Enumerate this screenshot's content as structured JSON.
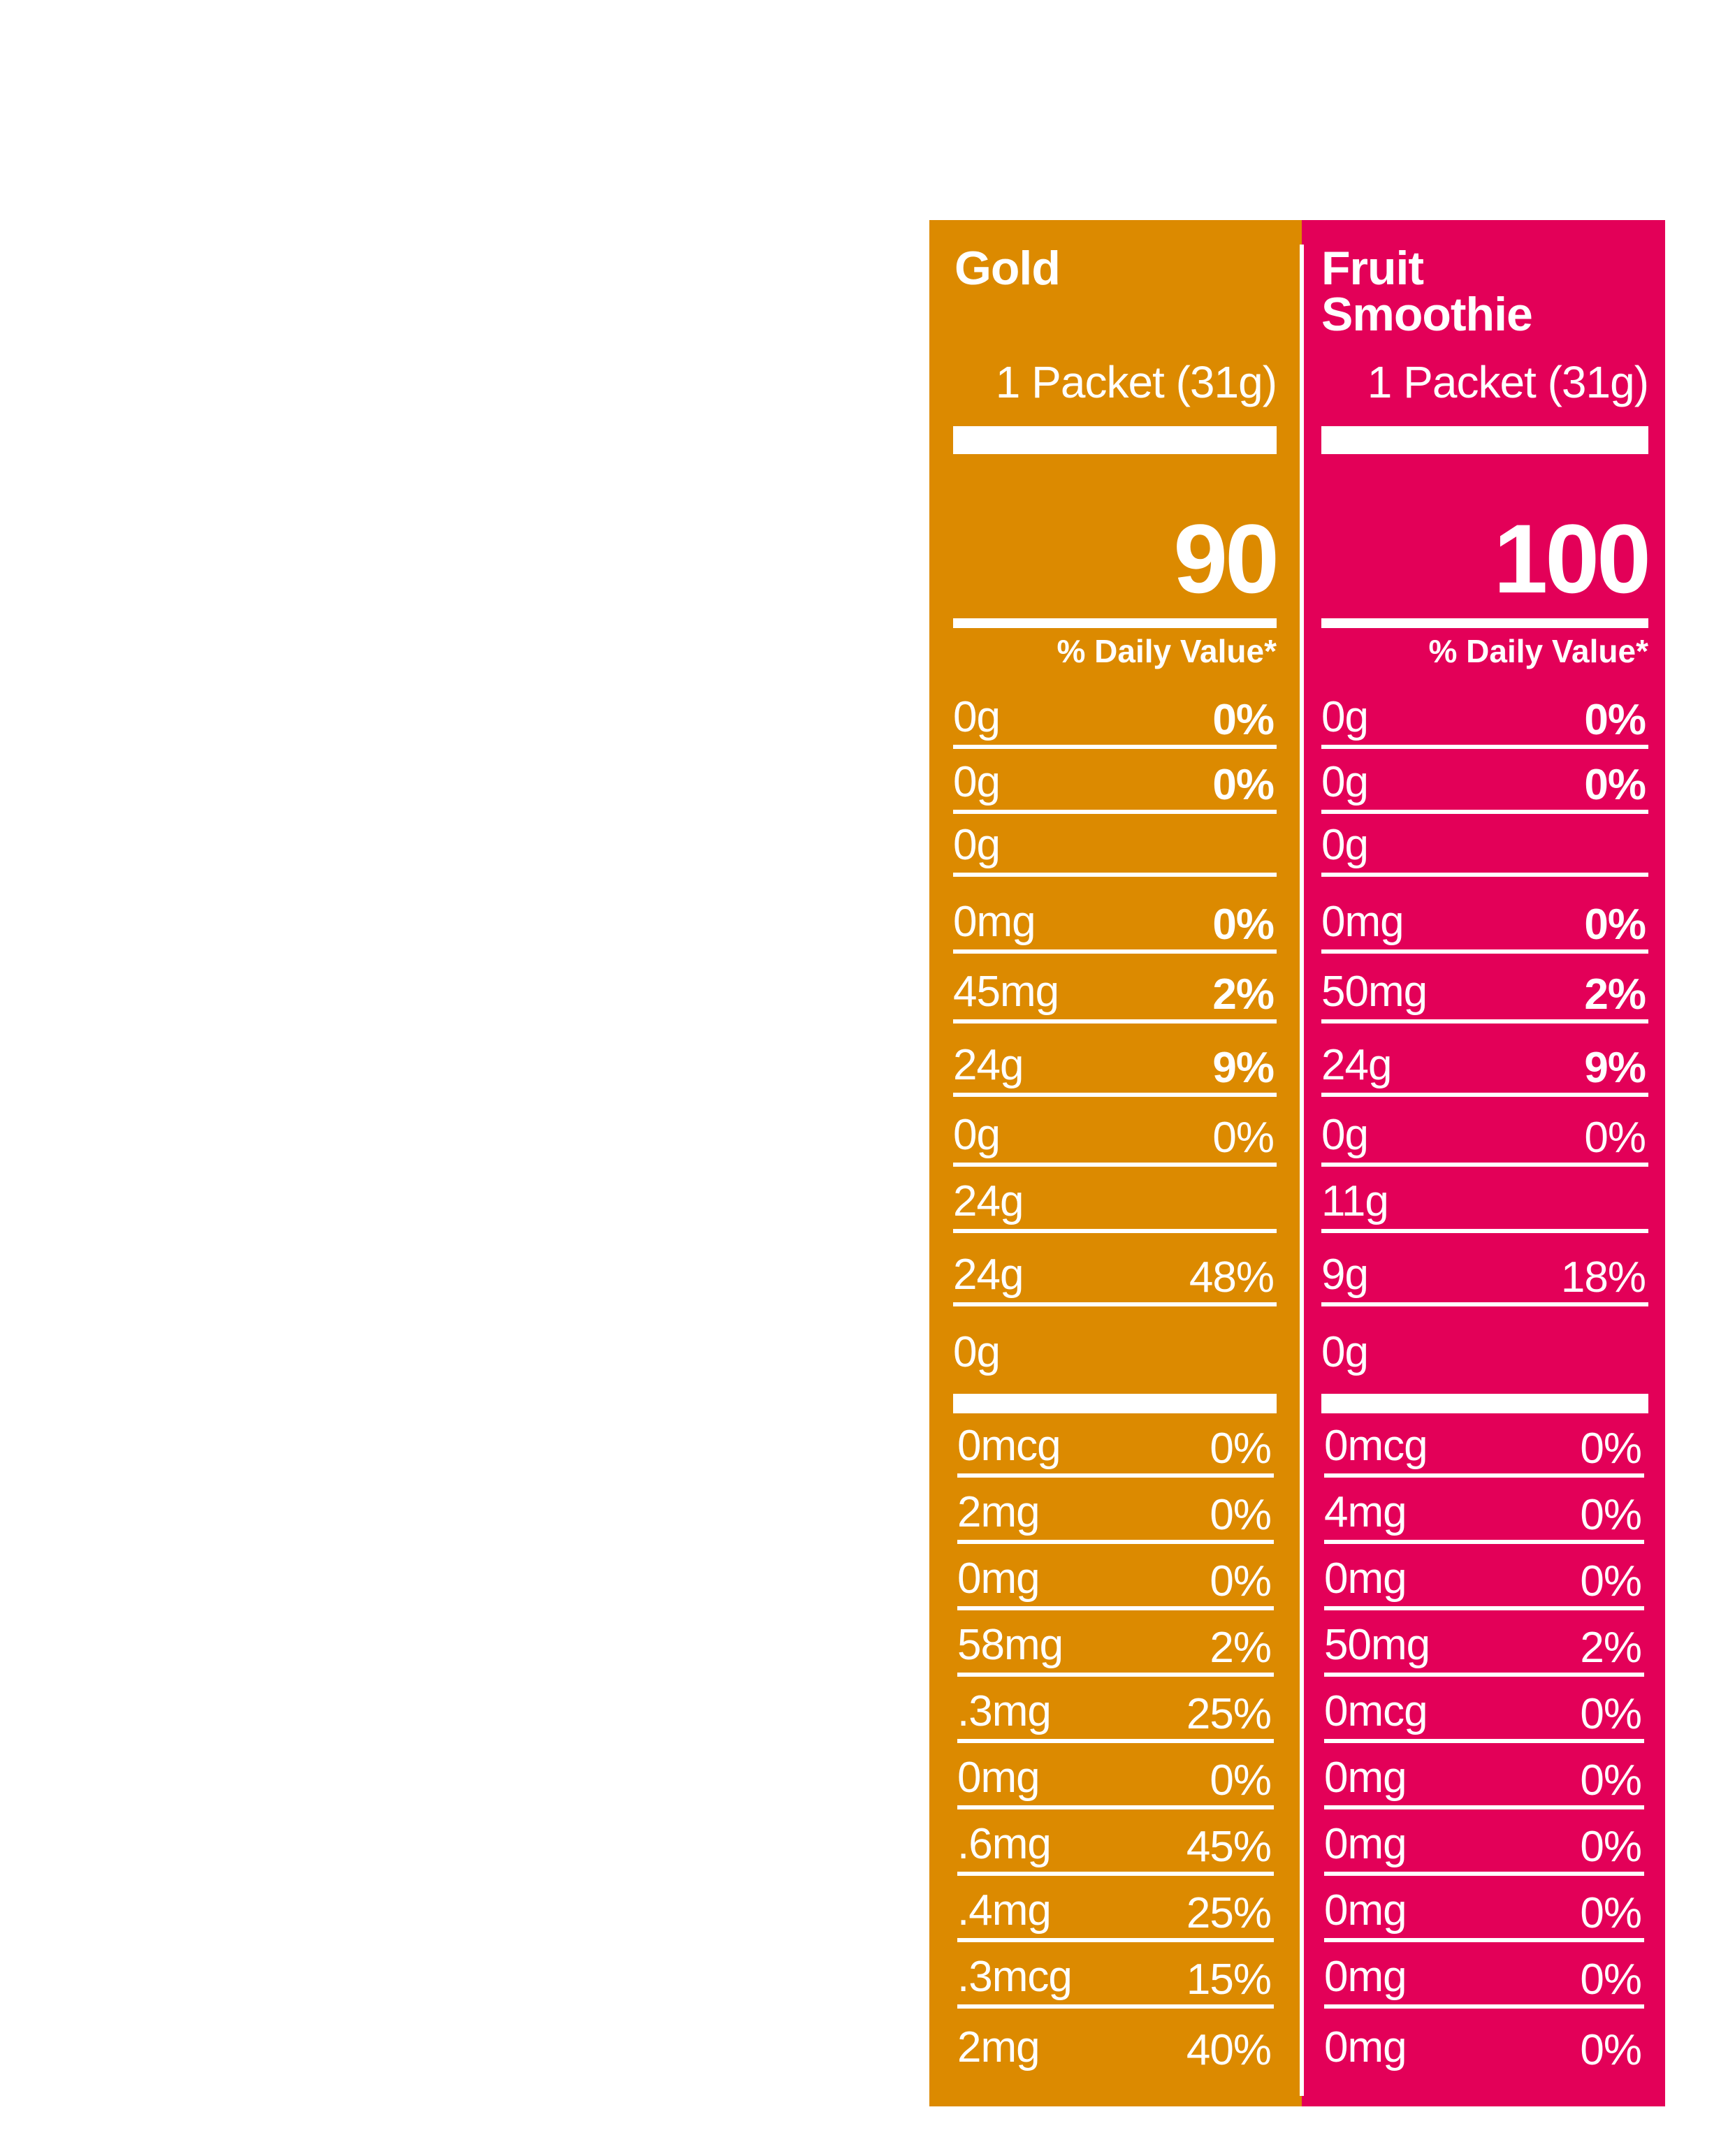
{
  "colors": {
    "gold": "#DC8A00",
    "pink": "#E30058",
    "text": "#FFFFFF"
  },
  "columns": [
    {
      "id": "gold",
      "title_lines": [
        "Gold"
      ],
      "serving": "1 Packet (31g)",
      "calories": "90",
      "dv_header": "% Daily Value*",
      "upper_rows": [
        {
          "amount": "0g",
          "pct": "0%",
          "bold": true
        },
        {
          "amount": "0g",
          "pct": "0%",
          "bold": true
        },
        {
          "amount": "0g",
          "pct": "",
          "bold": false
        },
        {
          "amount": "0mg",
          "pct": "0%",
          "bold": true
        },
        {
          "amount": "45mg",
          "pct": "2%",
          "bold": true
        },
        {
          "amount": "24g",
          "pct": "9%",
          "bold": true
        },
        {
          "amount": "0g",
          "pct": "0%",
          "bold": false
        },
        {
          "amount": "24g",
          "pct": "",
          "bold": false
        },
        {
          "amount": "24g",
          "pct": "48%",
          "bold": false
        },
        {
          "amount": "0g",
          "pct": "",
          "bold": false
        }
      ],
      "lower_rows": [
        {
          "amount": "0mcg",
          "pct": "0%"
        },
        {
          "amount": "2mg",
          "pct": "0%"
        },
        {
          "amount": "0mg",
          "pct": "0%"
        },
        {
          "amount": "58mg",
          "pct": "2%"
        },
        {
          "amount": ".3mg",
          "pct": "25%"
        },
        {
          "amount": "0mg",
          "pct": "0%"
        },
        {
          "amount": ".6mg",
          "pct": "45%"
        },
        {
          "amount": ".4mg",
          "pct": "25%"
        },
        {
          "amount": ".3mcg",
          "pct": "15%"
        },
        {
          "amount": "2mg",
          "pct": "40%"
        }
      ]
    },
    {
      "id": "pink",
      "title_lines": [
        "Fruit",
        "Smoothie"
      ],
      "serving": "1 Packet (31g)",
      "calories": "100",
      "dv_header": "% Daily Value*",
      "upper_rows": [
        {
          "amount": "0g",
          "pct": "0%",
          "bold": true
        },
        {
          "amount": "0g",
          "pct": "0%",
          "bold": true
        },
        {
          "amount": "0g",
          "pct": "",
          "bold": false
        },
        {
          "amount": "0mg",
          "pct": "0%",
          "bold": true
        },
        {
          "amount": "50mg",
          "pct": "2%",
          "bold": true
        },
        {
          "amount": "24g",
          "pct": "9%",
          "bold": true
        },
        {
          "amount": "0g",
          "pct": "0%",
          "bold": false
        },
        {
          "amount": "11g",
          "pct": "",
          "bold": false
        },
        {
          "amount": "9g",
          "pct": "18%",
          "bold": false
        },
        {
          "amount": "0g",
          "pct": "",
          "bold": false
        }
      ],
      "lower_rows": [
        {
          "amount": "0mcg",
          "pct": "0%"
        },
        {
          "amount": "4mg",
          "pct": "0%"
        },
        {
          "amount": "0mg",
          "pct": "0%"
        },
        {
          "amount": "50mg",
          "pct": "2%"
        },
        {
          "amount": "0mcg",
          "pct": "0%"
        },
        {
          "amount": "0mg",
          "pct": "0%"
        },
        {
          "amount": "0mg",
          "pct": "0%"
        },
        {
          "amount": "0mg",
          "pct": "0%"
        },
        {
          "amount": "0mg",
          "pct": "0%"
        },
        {
          "amount": "0mg",
          "pct": "0%"
        }
      ]
    }
  ]
}
